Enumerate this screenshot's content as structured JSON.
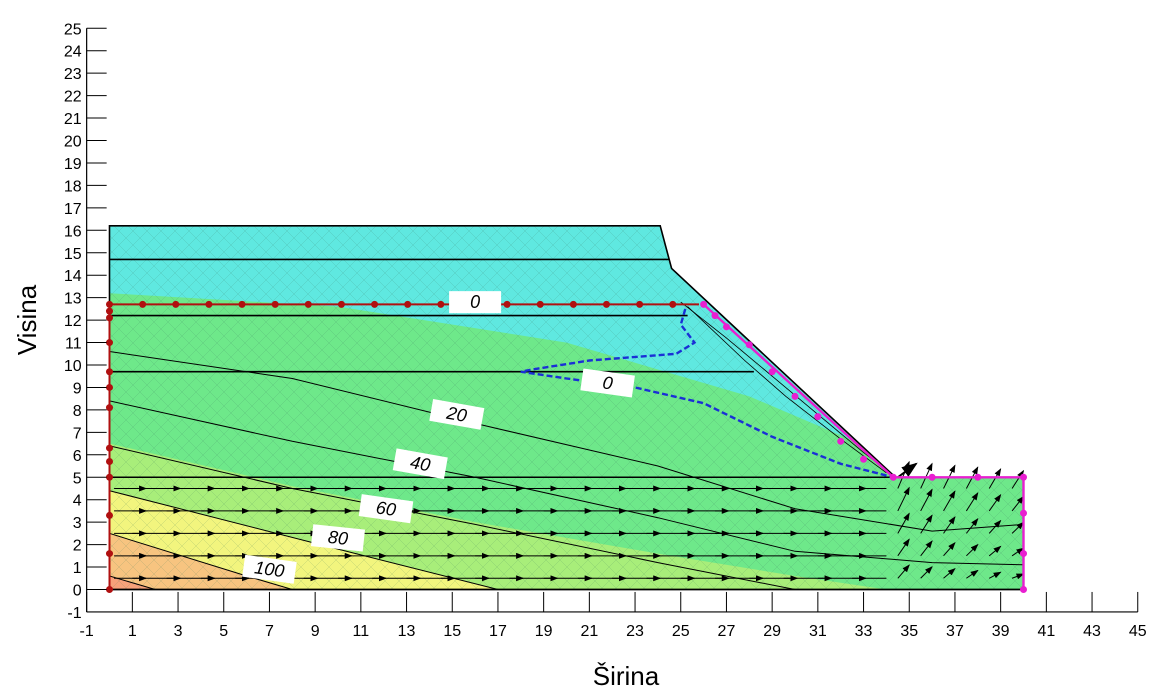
{
  "chart_data": {
    "type": "contour",
    "xlabel": "Širina",
    "ylabel": "Visina",
    "xlim": [
      -1,
      45
    ],
    "ylim": [
      -1,
      25
    ],
    "x_ticks": [
      "-1",
      "1",
      "3",
      "5",
      "7",
      "9",
      "11",
      "13",
      "15",
      "17",
      "19",
      "21",
      "23",
      "25",
      "27",
      "29",
      "31",
      "33",
      "35",
      "37",
      "39",
      "41",
      "43",
      "45"
    ],
    "y_ticks": [
      "-1",
      "0",
      "1",
      "2",
      "3",
      "4",
      "5",
      "6",
      "7",
      "8",
      "9",
      "10",
      "11",
      "12",
      "13",
      "14",
      "15",
      "16",
      "17",
      "18",
      "19",
      "20",
      "21",
      "22",
      "23",
      "24",
      "25"
    ],
    "contour_labels": [
      "0",
      "0",
      "20",
      "40",
      "60",
      "80",
      "100"
    ],
    "slope_outline": [
      [
        0,
        16.2
      ],
      [
        24.1,
        16.2
      ],
      [
        24.6,
        14.3
      ],
      [
        34.4,
        5
      ],
      [
        40,
        5
      ],
      [
        40,
        0
      ],
      [
        0,
        0
      ]
    ],
    "layer_boundaries_y": [
      14.7,
      12.2,
      9.7,
      5
    ],
    "water_table": [
      [
        0,
        12.7
      ],
      [
        26.2,
        12.7
      ],
      [
        34.3,
        5
      ],
      [
        40,
        5
      ]
    ],
    "seepage_face_dashed": [
      [
        25.2,
        12.5
      ],
      [
        25,
        11.8
      ],
      [
        25.6,
        11
      ],
      [
        24.8,
        10.5
      ],
      [
        21,
        10.2
      ],
      [
        18.5,
        9.8
      ],
      [
        18,
        9.7
      ],
      [
        20,
        9.4
      ],
      [
        23,
        9
      ],
      [
        26,
        8.3
      ],
      [
        29,
        6.8
      ],
      [
        32,
        5.6
      ],
      [
        34.3,
        5
      ]
    ],
    "colors": {
      "cyan": "#5fe8e0",
      "green": "#6ee88a",
      "light_green": "#a8ee7a",
      "yellow": "#f2f57e",
      "orange": "#f7c480",
      "salmon": "#f7a17a",
      "boundary_red": "#b01010",
      "boundary_magenta": "#e81fd0",
      "seepage_blue": "#1a2fd6"
    }
  }
}
